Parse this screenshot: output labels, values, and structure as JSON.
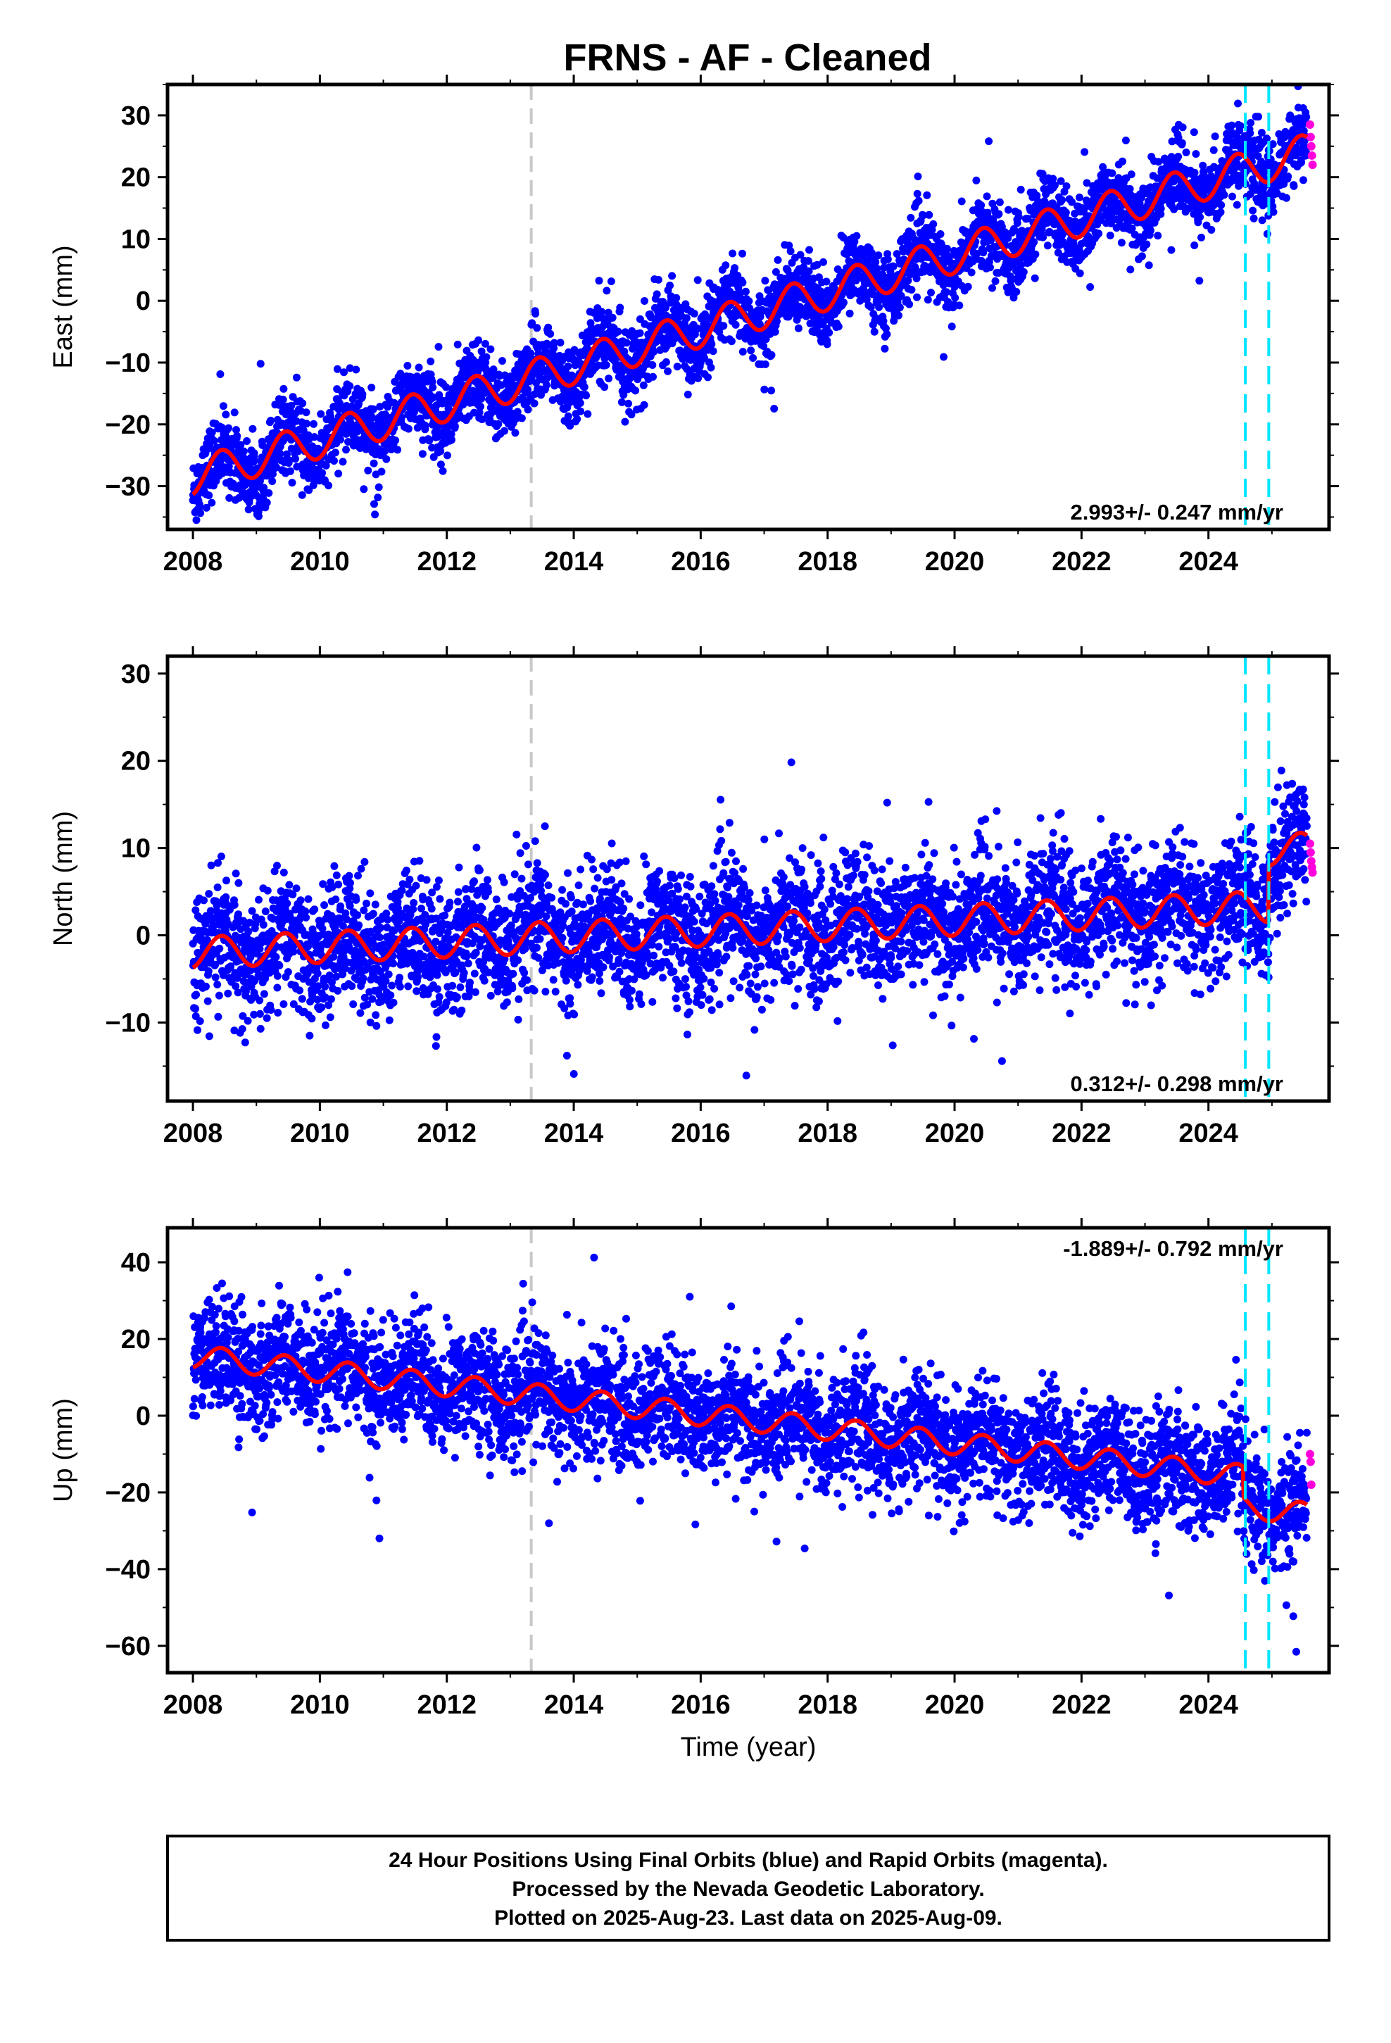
{
  "title": "FRNS  - AF - Cleaned",
  "colors": {
    "final_orbits": "#0000ff",
    "rapid_orbits": "#ff00dd",
    "model": "#ff0000",
    "equipment_change": "#c8c8c8",
    "event": "#00e5ff"
  },
  "chart_data": [
    {
      "type": "scatter",
      "name": "east",
      "ylabel": "East (mm)",
      "xlabel": "",
      "xlim": [
        2007.6,
        2025.9
      ],
      "ylim": [
        -37,
        35
      ],
      "xticks": [
        2008,
        2010,
        2012,
        2014,
        2016,
        2018,
        2020,
        2022,
        2024
      ],
      "xticklabels": [
        "2008",
        "2010",
        "2012",
        "2014",
        "2016",
        "2018",
        "2020",
        "2022",
        "2024"
      ],
      "yticks": [
        -30,
        -20,
        -10,
        0,
        10,
        20,
        30
      ],
      "yticklabels": [
        "−30",
        "−20",
        "−10",
        "0",
        "10",
        "20",
        "30"
      ],
      "rate_label": "2.993+/- 0.247 mm/yr",
      "rate_position": "bottom-right",
      "trend": {
        "start_year": 2008.0,
        "start_value": -28.5,
        "rate": 2.993
      },
      "seasonal_amplitude": 3.0,
      "scatter_sd": 3.0,
      "steps": [],
      "final_orbits": {
        "x_range": [
          2008.0,
          2025.55
        ],
        "approx_points": 4200
      },
      "rapid_orbits": {
        "x": [
          2025.6,
          2025.61,
          2025.62,
          2025.63,
          2025.64
        ],
        "y": [
          28.5,
          26.5,
          25.0,
          23.5,
          22.0
        ]
      },
      "vlines_gray": [
        2013.33
      ],
      "vlines_cyan": [
        2024.58,
        2024.95
      ]
    },
    {
      "type": "scatter",
      "name": "north",
      "ylabel": "North (mm)",
      "xlabel": "",
      "xlim": [
        2007.6,
        2025.9
      ],
      "ylim": [
        -19,
        32
      ],
      "xticks": [
        2008,
        2010,
        2012,
        2014,
        2016,
        2018,
        2020,
        2022,
        2024
      ],
      "xticklabels": [
        "2008",
        "2010",
        "2012",
        "2014",
        "2016",
        "2018",
        "2020",
        "2022",
        "2024"
      ],
      "yticks": [
        -10,
        0,
        10,
        20,
        30
      ],
      "yticklabels": [
        "−10",
        "0",
        "10",
        "20",
        "30"
      ],
      "rate_label": "0.312+/- 0.298 mm/yr",
      "rate_position": "bottom-right",
      "trend": {
        "start_year": 2008.0,
        "start_value": -2.0,
        "rate": 0.312
      },
      "seasonal_amplitude": 1.8,
      "scatter_sd": 3.6,
      "steps": [
        {
          "x": 2024.95,
          "dy": 6.5
        }
      ],
      "final_orbits": {
        "x_range": [
          2008.0,
          2025.55
        ],
        "approx_points": 4200
      },
      "rapid_orbits": {
        "x": [
          2025.6,
          2025.61,
          2025.62,
          2025.63,
          2025.64
        ],
        "y": [
          10.5,
          9.5,
          8.5,
          7.8,
          7.2
        ]
      },
      "vlines_gray": [
        2013.33
      ],
      "vlines_cyan": [
        2024.58,
        2024.95
      ]
    },
    {
      "type": "scatter",
      "name": "up",
      "ylabel": "Up (mm)",
      "xlabel": "Time (year)",
      "xlim": [
        2007.6,
        2025.9
      ],
      "ylim": [
        -67,
        49
      ],
      "xticks": [
        2008,
        2010,
        2012,
        2014,
        2016,
        2018,
        2020,
        2022,
        2024
      ],
      "xticklabels": [
        "2008",
        "2010",
        "2012",
        "2014",
        "2016",
        "2018",
        "2020",
        "2022",
        "2024"
      ],
      "yticks": [
        -60,
        -40,
        -20,
        0,
        20,
        40
      ],
      "yticklabels": [
        "−60",
        "−40",
        "−20",
        "0",
        "20",
        "40"
      ],
      "rate_label": "-1.889+/- 0.792 mm/yr",
      "rate_position": "top-right",
      "trend": {
        "start_year": 2008.0,
        "start_value": 15.5,
        "rate": -1.889
      },
      "seasonal_amplitude": 3.0,
      "scatter_sd": 7.5,
      "steps": [
        {
          "x": 2024.55,
          "dy": -8.0
        }
      ],
      "final_orbits": {
        "x_range": [
          2008.0,
          2025.55
        ],
        "approx_points": 4200
      },
      "rapid_orbits": {
        "x": [
          2025.6,
          2025.61,
          2025.62
        ],
        "y": [
          -10.0,
          -12.0,
          -18.0
        ]
      },
      "vlines_gray": [
        2013.33
      ],
      "vlines_cyan": [
        2024.58,
        2024.95
      ]
    }
  ],
  "footer": {
    "line1": "24 Hour Positions Using Final Orbits (blue) and Rapid Orbits (magenta).",
    "line2": "Processed by the Nevada Geodetic Laboratory.",
    "line3": "Plotted on 2025-Aug-23. Last data on 2025-Aug-09."
  }
}
